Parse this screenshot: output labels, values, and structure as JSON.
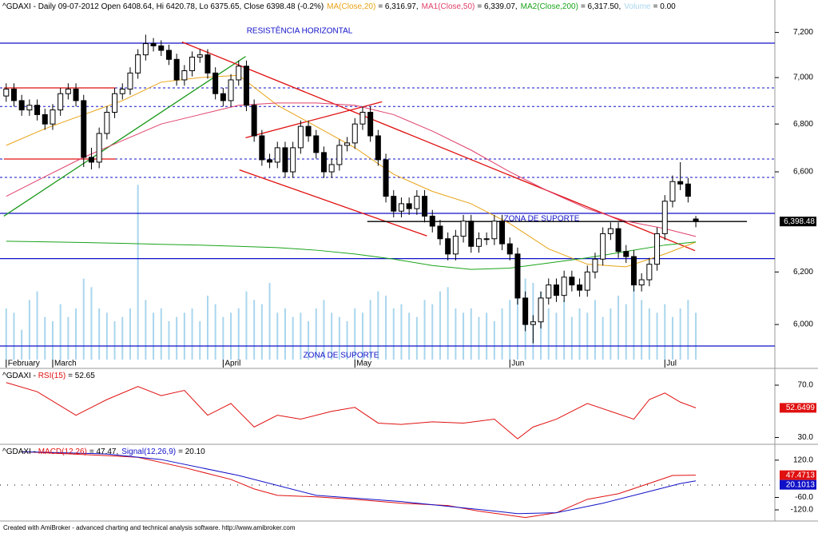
{
  "chart_data": [
    {
      "type": "candlestick",
      "title": "^GDAXI - Daily 09-07-2012 Open 6408.64, Hi 6420.78, Lo 6375.65, Close 6398.48 (-0.2%)",
      "xlim": [
        -0.8,
        99.2
      ],
      "xticks": [
        {
          "value": 0,
          "label": "February"
        },
        {
          "value": 6,
          "label": "March"
        },
        {
          "value": 28,
          "label": "April"
        },
        {
          "value": 45,
          "label": "May"
        },
        {
          "value": 65,
          "label": "Jun"
        },
        {
          "value": 85,
          "label": "Jul"
        }
      ],
      "ylim": [
        5870,
        7340
      ],
      "log_scale": true,
      "yticks": [
        {
          "value": 7200,
          "label": "7,200"
        },
        {
          "value": 7000,
          "label": "7,000"
        },
        {
          "value": 6800,
          "label": "6,800"
        },
        {
          "value": 6600,
          "label": "6,600"
        },
        {
          "value": 6200,
          "label": "6,200"
        },
        {
          "value": 6000,
          "label": "6,000"
        }
      ],
      "up_color": "#ffffff",
      "down_color": "#000000",
      "candles": [
        [
          6920,
          6975,
          6895,
          6950
        ],
        [
          6950,
          6975,
          6875,
          6900
        ],
        [
          6900,
          6925,
          6835,
          6860
        ],
        [
          6860,
          6905,
          6835,
          6880
        ],
        [
          6880,
          6905,
          6815,
          6840
        ],
        [
          6840,
          6865,
          6775,
          6800
        ],
        [
          6800,
          6885,
          6775,
          6860
        ],
        [
          6860,
          6955,
          6835,
          6930
        ],
        [
          6930,
          6975,
          6905,
          6950
        ],
        [
          6950,
          6975,
          6875,
          6900
        ],
        [
          6900,
          6925,
          6620,
          6660
        ],
        [
          6660,
          6700,
          6610,
          6640
        ],
        [
          6640,
          6785,
          6615,
          6760
        ],
        [
          6760,
          6875,
          6735,
          6850
        ],
        [
          6850,
          6955,
          6825,
          6930
        ],
        [
          6930,
          6975,
          6905,
          6950
        ],
        [
          6950,
          7045,
          6925,
          7020
        ],
        [
          7020,
          7125,
          6995,
          7100
        ],
        [
          7100,
          7190,
          7075,
          7150
        ],
        [
          7150,
          7175,
          7115,
          7140
        ],
        [
          7140,
          7165,
          7095,
          7120
        ],
        [
          7120,
          7145,
          7055,
          7080
        ],
        [
          7080,
          7105,
          6965,
          6990
        ],
        [
          6990,
          7055,
          6965,
          7030
        ],
        [
          7030,
          7115,
          7005,
          7090
        ],
        [
          7090,
          7125,
          7065,
          7100
        ],
        [
          7100,
          7125,
          6995,
          7020
        ],
        [
          7020,
          7045,
          6905,
          6930
        ],
        [
          6930,
          6955,
          6875,
          6900
        ],
        [
          6900,
          7015,
          6875,
          6990
        ],
        [
          6990,
          7075,
          6965,
          7050
        ],
        [
          7050,
          7075,
          6855,
          6880
        ],
        [
          6880,
          6905,
          6725,
          6750
        ],
        [
          6750,
          6775,
          6625,
          6650
        ],
        [
          6650,
          6675,
          6615,
          6640
        ],
        [
          6640,
          6725,
          6615,
          6700
        ],
        [
          6700,
          6725,
          6575,
          6600
        ],
        [
          6600,
          6725,
          6575,
          6700
        ],
        [
          6700,
          6815,
          6675,
          6790
        ],
        [
          6790,
          6815,
          6725,
          6750
        ],
        [
          6750,
          6775,
          6655,
          6680
        ],
        [
          6680,
          6705,
          6575,
          6600
        ],
        [
          6600,
          6655,
          6575,
          6630
        ],
        [
          6630,
          6735,
          6605,
          6710
        ],
        [
          6710,
          6745,
          6685,
          6720
        ],
        [
          6720,
          6825,
          6695,
          6800
        ],
        [
          6800,
          6875,
          6775,
          6850
        ],
        [
          6850,
          6875,
          6725,
          6750
        ],
        [
          6750,
          6775,
          6625,
          6650
        ],
        [
          6650,
          6675,
          6475,
          6500
        ],
        [
          6500,
          6525,
          6415,
          6440
        ],
        [
          6440,
          6495,
          6415,
          6470
        ],
        [
          6470,
          6495,
          6425,
          6450
        ],
        [
          6450,
          6525,
          6425,
          6500
        ],
        [
          6500,
          6525,
          6395,
          6420
        ],
        [
          6420,
          6445,
          6355,
          6380
        ],
        [
          6380,
          6405,
          6305,
          6330
        ],
        [
          6330,
          6355,
          6245,
          6270
        ],
        [
          6270,
          6365,
          6245,
          6340
        ],
        [
          6340,
          6425,
          6315,
          6400
        ],
        [
          6400,
          6425,
          6275,
          6300
        ],
        [
          6300,
          6355,
          6275,
          6330
        ],
        [
          6330,
          6355,
          6305,
          6330
        ],
        [
          6330,
          6425,
          6305,
          6400
        ],
        [
          6400,
          6425,
          6285,
          6310
        ],
        [
          6310,
          6335,
          6245,
          6270
        ],
        [
          6270,
          6295,
          6075,
          6100
        ],
        [
          6100,
          6125,
          5975,
          6000
        ],
        [
          6000,
          6035,
          5930,
          6010
        ],
        [
          6010,
          6125,
          5985,
          6100
        ],
        [
          6100,
          6175,
          6075,
          6150
        ],
        [
          6150,
          6175,
          6085,
          6110
        ],
        [
          6110,
          6205,
          6085,
          6180
        ],
        [
          6180,
          6205,
          6125,
          6150
        ],
        [
          6150,
          6175,
          6105,
          6130
        ],
        [
          6130,
          6225,
          6105,
          6200
        ],
        [
          6200,
          6275,
          6175,
          6250
        ],
        [
          6250,
          6375,
          6225,
          6350
        ],
        [
          6350,
          6395,
          6325,
          6370
        ],
        [
          6370,
          6395,
          6255,
          6280
        ],
        [
          6280,
          6305,
          6235,
          6260
        ],
        [
          6260,
          6285,
          6125,
          6150
        ],
        [
          6150,
          6195,
          6125,
          6170
        ],
        [
          6170,
          6255,
          6145,
          6230
        ],
        [
          6230,
          6375,
          6205,
          6350
        ],
        [
          6350,
          6505,
          6325,
          6480
        ],
        [
          6480,
          6585,
          6455,
          6560
        ],
        [
          6560,
          6640,
          6525,
          6550
        ],
        [
          6550,
          6575,
          6475,
          6500
        ],
        [
          6408.64,
          6420.78,
          6375.65,
          6398.48
        ]
      ],
      "series": [
        {
          "name": "MA(Close,20)",
          "color": "#e8a317",
          "value_label": "= 6,316.97,",
          "x": [
            0,
            5,
            10,
            15,
            20,
            25,
            30,
            35,
            40,
            45,
            50,
            55,
            60,
            65,
            70,
            75,
            80,
            85,
            89
          ],
          "values": [
            6710,
            6780,
            6840,
            6900,
            6980,
            7000,
            7010,
            6880,
            6790,
            6700,
            6590,
            6520,
            6470,
            6390,
            6290,
            6230,
            6220,
            6270,
            6316.97
          ]
        },
        {
          "name": "MA1(Close,50)",
          "color": "#e0406a",
          "value_label": "= 6,339.07,",
          "x": [
            0,
            5,
            10,
            15,
            20,
            25,
            30,
            35,
            40,
            45,
            50,
            55,
            60,
            65,
            70,
            75,
            80,
            85,
            89
          ],
          "values": [
            6500,
            6580,
            6660,
            6730,
            6800,
            6840,
            6880,
            6890,
            6890,
            6880,
            6840,
            6770,
            6690,
            6600,
            6520,
            6450,
            6400,
            6370,
            6339.07
          ]
        },
        {
          "name": "MA2(Close,200)",
          "color": "#1aa31a",
          "value_label": "= 6,317.50,",
          "x": [
            0,
            5,
            10,
            15,
            20,
            25,
            30,
            35,
            40,
            45,
            50,
            55,
            60,
            65,
            70,
            75,
            80,
            85,
            89
          ],
          "values": [
            6320,
            6318,
            6315,
            6312,
            6308,
            6305,
            6300,
            6295,
            6285,
            6270,
            6250,
            6225,
            6210,
            6215,
            6235,
            6255,
            6280,
            6305,
            6317.5
          ]
        }
      ],
      "volume": {
        "name": "Volume",
        "color": "#a9d6ee",
        "value_label": "= 0.00",
        "ylim": [
          0,
          210
        ],
        "values": [
          60,
          55,
          35,
          70,
          80,
          50,
          45,
          65,
          50,
          60,
          95,
          85,
          60,
          55,
          45,
          50,
          60,
          205,
          70,
          55,
          60,
          45,
          50,
          55,
          60,
          45,
          75,
          65,
          50,
          55,
          60,
          80,
          70,
          65,
          90,
          55,
          60,
          50,
          55,
          45,
          60,
          70,
          55,
          50,
          45,
          60,
          55,
          70,
          80,
          75,
          60,
          65,
          55,
          50,
          70,
          65,
          80,
          85,
          60,
          55,
          60,
          50,
          55,
          45,
          60,
          70,
          110,
          95,
          90,
          80,
          60,
          55,
          70,
          50,
          60,
          55,
          70,
          50,
          60,
          75,
          65,
          90,
          70,
          60,
          55,
          65,
          50,
          60,
          70,
          55
        ]
      },
      "last_label": "6,398.48",
      "hlines": [
        {
          "value": 7152,
          "color": "#1010c8"
        },
        {
          "value": 6431,
          "color": "#1010c8"
        },
        {
          "value": 6252,
          "color": "#1010c8"
        },
        {
          "value": 5920,
          "color": "#1010c8"
        }
      ],
      "dashed_lines": [
        {
          "value": 6955,
          "color": "#1010c8"
        },
        {
          "value": 6875,
          "color": "#1010c8"
        },
        {
          "value": 6653,
          "color": "#1010c8"
        },
        {
          "value": 6577,
          "color": "#1010c8"
        }
      ],
      "segments": [
        {
          "color": "#189818",
          "x": [
            -0.3,
            30.9
          ],
          "values": [
            6420,
            7093
          ]
        },
        {
          "color": "#e01010",
          "x": [
            22.7,
            88.9
          ],
          "values": [
            7157,
            6283
          ]
        },
        {
          "color": "#e01010",
          "x": [
            30.9,
            48.5
          ],
          "values": [
            6742,
            6895
          ]
        },
        {
          "color": "#e01010",
          "x": [
            30.1,
            54.3
          ],
          "values": [
            6608,
            6341
          ]
        },
        {
          "color": "#e01010",
          "x": [
            -0.3,
            14.1
          ],
          "values": [
            6955,
            6955
          ]
        },
        {
          "color": "#e01010",
          "x": [
            -0.3,
            14.1
          ],
          "values": [
            6653,
            6653
          ]
        },
        {
          "color": "#000000",
          "x": [
            46.6,
            95.6
          ],
          "values": [
            6398.48,
            6398.48
          ]
        }
      ],
      "annotations": [
        "RESISTÊNCIA HORIZONTAL",
        "ZONA DE SUPORTE",
        "ZONA DE SUPORTE"
      ]
    },
    {
      "type": "line",
      "title": "^GDAXI - ",
      "xlim": [
        -0.8,
        99.2
      ],
      "ylim": [
        26,
        81
      ],
      "yticks": [
        {
          "value": 70,
          "label": "70.0"
        },
        {
          "value": 30,
          "label": "30.0"
        }
      ],
      "series": [
        {
          "name": "RSI(15)",
          "color": "#e01010",
          "value_label": "= 52.65",
          "last_label": "52.6499",
          "x": [
            0,
            4,
            9,
            13,
            17,
            20,
            23,
            26,
            29,
            32,
            35,
            38,
            42,
            45,
            48,
            51,
            55,
            59,
            63,
            66,
            68,
            71,
            75,
            78,
            81,
            83,
            85,
            87,
            89
          ],
          "values": [
            72,
            65,
            47,
            59,
            69,
            62,
            66,
            47,
            56,
            38,
            47,
            44,
            50,
            53,
            41,
            40,
            42,
            41,
            44,
            29,
            38,
            44,
            56,
            50,
            44,
            59,
            64,
            57,
            52.65
          ]
        }
      ]
    },
    {
      "type": "line",
      "title": "^GDAXI - ",
      "xlim": [
        -0.8,
        99.2
      ],
      "ylim": [
        -170,
        185
      ],
      "yticks": [
        {
          "value": 120,
          "label": "120.0"
        },
        {
          "value": -60,
          "label": "-60.0"
        },
        {
          "value": -120,
          "label": "-120.0"
        }
      ],
      "series": [
        {
          "name": "MACD(12,26)",
          "color": "#e01010",
          "value_label": "= 47.47,",
          "last_label": "47.4713",
          "x": [
            2,
            13,
            17,
            23,
            29,
            32,
            35,
            40,
            45,
            51,
            57,
            61,
            67,
            71,
            75,
            79,
            83,
            86,
            89
          ],
          "values": [
            161,
            142,
            134,
            84,
            27,
            -19,
            -50,
            -57,
            -69,
            -88,
            -99,
            -126,
            -157,
            -134,
            -69,
            -42,
            8,
            46,
            47.47
          ]
        },
        {
          "name": "Signal(12,26,9)",
          "color": "#1010c8",
          "value_label": "= 20.10",
          "last_label": "20.1013",
          "x": [
            2,
            13,
            20,
            30,
            40,
            51,
            61,
            66,
            71,
            77,
            83,
            87,
            89
          ],
          "values": [
            161,
            150,
            123,
            46,
            -50,
            -80,
            -118,
            -138,
            -134,
            -88,
            -31,
            7,
            20.1
          ]
        }
      ]
    }
  ],
  "footer": "Created with AmiBroker - advanced charting and technical analysis software. http://www.amibroker.com"
}
